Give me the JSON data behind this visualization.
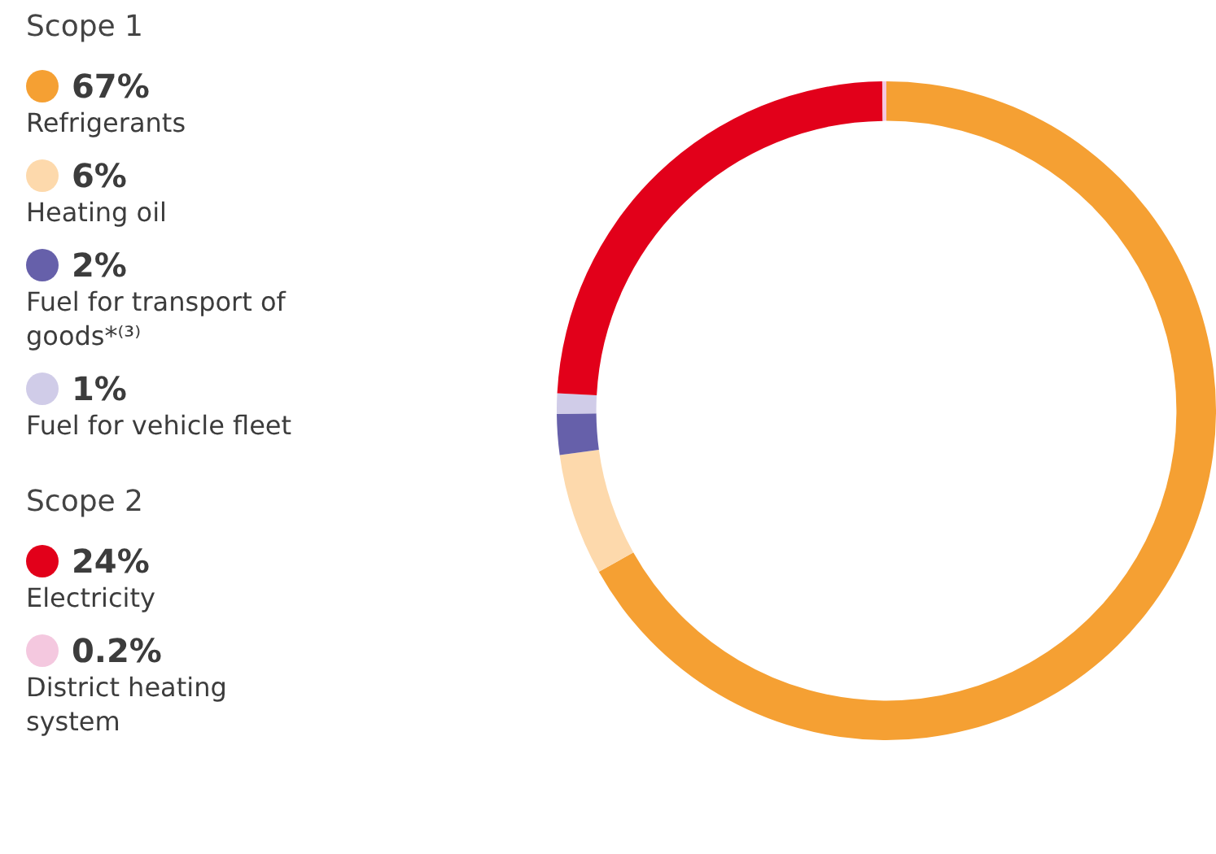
{
  "chart_data": {
    "type": "donut",
    "categories": [
      "Refrigerants",
      "Heating oil",
      "Fuel for transport of goods*⁽³⁾",
      "Fuel for vehicle fleet",
      "Electricity",
      "District heating system"
    ],
    "values": [
      67,
      6,
      2,
      1,
      24,
      0.2
    ],
    "value_labels": [
      "67%",
      "6%",
      "2%",
      "1%",
      "24%",
      "0.2%"
    ],
    "colors": [
      "#f5a033",
      "#fdd9ac",
      "#6660aa",
      "#d0cce8",
      "#e2001a",
      "#f4c8df"
    ],
    "annotations": [
      "Scope 1",
      "Scope 2"
    ],
    "legend": "left"
  }
}
